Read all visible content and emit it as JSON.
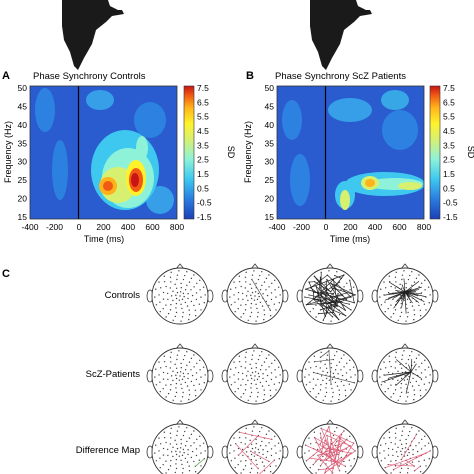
{
  "panels": [
    {
      "letter": "A",
      "title": "Phase Synchrony Controls",
      "xlabel": "Time (ms)",
      "ylabel": "Frequency (Hz)",
      "xticks": [
        "-400",
        "-200",
        "0",
        "200",
        "400",
        "600",
        "800"
      ],
      "yticks": [
        "50",
        "45",
        "40",
        "35",
        "30",
        "25",
        "20",
        "15"
      ],
      "colorbar_ticks": [
        "7.5",
        "6.5",
        "5.5",
        "4.5",
        "3.5",
        "2.5",
        "1.5",
        "0.5",
        "-0.5",
        "-1.5"
      ],
      "colorbar_label": "SD"
    },
    {
      "letter": "B",
      "title": "Phase Synchrony ScZ Patients",
      "xlabel": "Time (ms)",
      "ylabel": "Frequency (Hz)",
      "xticks": [
        "-400",
        "-200",
        "0",
        "200",
        "400",
        "600",
        "800"
      ],
      "yticks": [
        "50",
        "45",
        "40",
        "35",
        "30",
        "25",
        "20",
        "15"
      ],
      "colorbar_ticks": [
        "7.5",
        "6.5",
        "5.5",
        "4.5",
        "3.5",
        "2.5",
        "1.5",
        "0.5",
        "-0.5",
        "-1.5"
      ],
      "colorbar_label": "SD"
    }
  ],
  "panel_c": {
    "letter": "C",
    "rows": [
      "Controls",
      "ScZ-Patients",
      "Difference Map"
    ]
  },
  "colors": {
    "colormap": [
      "#1d3fb8",
      "#2a7de0",
      "#3ec8f0",
      "#8ef2d8",
      "#d8f070",
      "#fff22a",
      "#ffb21a",
      "#f05a14",
      "#c81414"
    ],
    "controls_lines": "#222222",
    "difference_red": "#e0607a",
    "difference_green": "#5aa84a"
  }
}
